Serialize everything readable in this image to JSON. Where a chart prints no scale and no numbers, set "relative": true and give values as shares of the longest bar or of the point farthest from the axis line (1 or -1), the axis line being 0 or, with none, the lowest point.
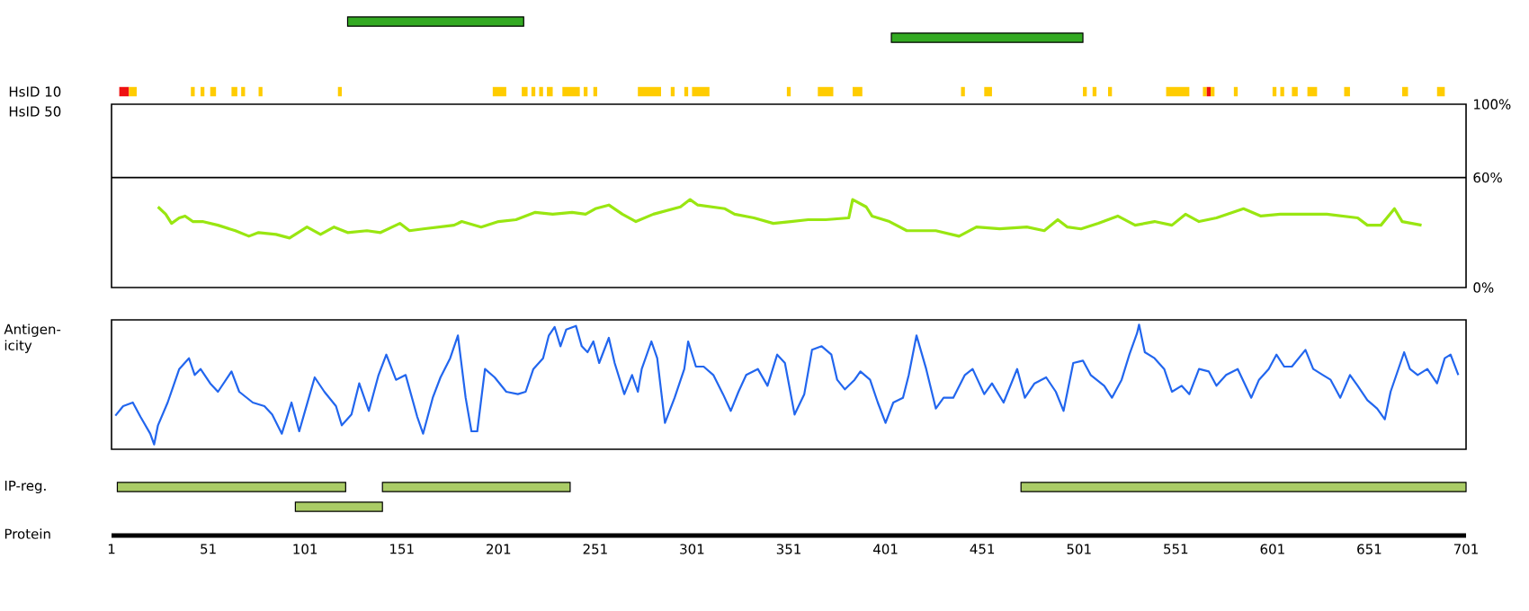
{
  "chart_data": [
    {
      "type": "bar",
      "orientation": "horizontal",
      "categories": [
        null,
        null
      ],
      "xlim": [
        1,
        701
      ],
      "tick_labels": false,
      "series": [
        {
          "color": "#33aa22",
          "values": [
            91,
            99
          ],
          "base": [
            123,
            404
          ]
        }
      ]
    },
    {
      "type": "bar",
      "orientation": "horizontal",
      "categories": [
        "HsID 10",
        "HsID 50"
      ],
      "xlim": [
        1,
        701
      ],
      "tick_labels": "y",
      "series": [
        {
          "color": "#ee1111",
          "values": [
            5,
            null
          ],
          "base": [
            5,
            null
          ]
        },
        {
          "color": "#ffcc00",
          "values": [
            4,
            null
          ],
          "base": [
            10,
            null
          ]
        },
        {
          "color": "#ffcc00",
          "values": [
            2,
            null
          ],
          "base": [
            42,
            null
          ]
        },
        {
          "color": "#ffcc00",
          "values": [
            2,
            null
          ],
          "base": [
            47,
            null
          ]
        },
        {
          "color": "#ffcc00",
          "values": [
            3,
            null
          ],
          "base": [
            52,
            null
          ]
        },
        {
          "color": "#ffcc00",
          "values": [
            3,
            null
          ],
          "base": [
            63,
            null
          ]
        },
        {
          "color": "#ffcc00",
          "values": [
            2,
            null
          ],
          "base": [
            68,
            null
          ]
        },
        {
          "color": "#ffcc00",
          "values": [
            2,
            null
          ],
          "base": [
            77,
            null
          ]
        },
        {
          "color": "#ffcc00",
          "values": [
            2,
            null
          ],
          "base": [
            118,
            null
          ]
        },
        {
          "color": "#ffcc00",
          "values": [
            7,
            null
          ],
          "base": [
            198,
            null
          ]
        },
        {
          "color": "#ffcc00",
          "values": [
            3,
            null
          ],
          "base": [
            213,
            null
          ]
        },
        {
          "color": "#ffcc00",
          "values": [
            2,
            null
          ],
          "base": [
            218,
            null
          ]
        },
        {
          "color": "#ffcc00",
          "values": [
            2,
            null
          ],
          "base": [
            222,
            null
          ]
        },
        {
          "color": "#ffcc00",
          "values": [
            3,
            null
          ],
          "base": [
            226,
            null
          ]
        },
        {
          "color": "#ffcc00",
          "values": [
            9,
            null
          ],
          "base": [
            234,
            null
          ]
        },
        {
          "color": "#ffcc00",
          "values": [
            2,
            null
          ],
          "base": [
            245,
            null
          ]
        },
        {
          "color": "#ffcc00",
          "values": [
            2,
            null
          ],
          "base": [
            250,
            null
          ]
        },
        {
          "color": "#ffcc00",
          "values": [
            12,
            null
          ],
          "base": [
            273,
            null
          ]
        },
        {
          "color": "#ffcc00",
          "values": [
            2,
            null
          ],
          "base": [
            290,
            null
          ]
        },
        {
          "color": "#ffcc00",
          "values": [
            2,
            null
          ],
          "base": [
            297,
            null
          ]
        },
        {
          "color": "#ffcc00",
          "values": [
            9,
            null
          ],
          "base": [
            301,
            null
          ]
        },
        {
          "color": "#ffcc00",
          "values": [
            2,
            null
          ],
          "base": [
            350,
            null
          ]
        },
        {
          "color": "#ffcc00",
          "values": [
            8,
            null
          ],
          "base": [
            366,
            null
          ]
        },
        {
          "color": "#ffcc00",
          "values": [
            5,
            null
          ],
          "base": [
            384,
            null
          ]
        },
        {
          "color": "#ffcc00",
          "values": [
            2,
            null
          ],
          "base": [
            440,
            null
          ]
        },
        {
          "color": "#ffcc00",
          "values": [
            4,
            null
          ],
          "base": [
            452,
            null
          ]
        },
        {
          "color": "#ffcc00",
          "values": [
            2,
            null
          ],
          "base": [
            503,
            null
          ]
        },
        {
          "color": "#ffcc00",
          "values": [
            2,
            null
          ],
          "base": [
            508,
            null
          ]
        },
        {
          "color": "#ffcc00",
          "values": [
            2,
            null
          ],
          "base": [
            516,
            null
          ]
        },
        {
          "color": "#ffcc00",
          "values": [
            12,
            null
          ],
          "base": [
            546,
            null
          ]
        },
        {
          "color": "#ffcc00",
          "values": [
            2,
            null
          ],
          "base": [
            565,
            null
          ]
        },
        {
          "color": "#ee1111",
          "values": [
            2,
            null
          ],
          "base": [
            567,
            null
          ]
        },
        {
          "color": "#ffcc00",
          "values": [
            2,
            null
          ],
          "base": [
            569,
            null
          ]
        },
        {
          "color": "#ffcc00",
          "values": [
            2,
            null
          ],
          "base": [
            581,
            null
          ]
        },
        {
          "color": "#ffcc00",
          "values": [
            2,
            null
          ],
          "base": [
            601,
            null
          ]
        },
        {
          "color": "#ffcc00",
          "values": [
            2,
            null
          ],
          "base": [
            605,
            null
          ]
        },
        {
          "color": "#ffcc00",
          "values": [
            3,
            null
          ],
          "base": [
            611,
            null
          ]
        },
        {
          "color": "#ffcc00",
          "values": [
            5,
            null
          ],
          "base": [
            619,
            null
          ]
        },
        {
          "color": "#ffcc00",
          "values": [
            3,
            null
          ],
          "base": [
            638,
            null
          ]
        },
        {
          "color": "#ffcc00",
          "values": [
            3,
            null
          ],
          "base": [
            668,
            null
          ]
        },
        {
          "color": "#ffcc00",
          "values": [
            4,
            null
          ],
          "base": [
            686,
            null
          ]
        }
      ]
    },
    {
      "type": "line",
      "color": "#99e611",
      "xlim": [
        1,
        701
      ],
      "ylim": [
        0,
        100
      ],
      "tick_labels": "y",
      "marker": "none",
      "yticks": [
        {
          "value": 0,
          "label": "0%"
        },
        {
          "value": 60,
          "label": "60%"
        },
        {
          "value": 100,
          "label": "100%"
        }
      ],
      "ref_lines": [
        {
          "axis": "y",
          "value": 60
        }
      ],
      "x": [
        25,
        29,
        32,
        36,
        39,
        43,
        48,
        56,
        65,
        72,
        77,
        86,
        93,
        102,
        109,
        116,
        123,
        133,
        140,
        150,
        155,
        162,
        178,
        182,
        192,
        201,
        210,
        220,
        229,
        239,
        246,
        251,
        258,
        265,
        272,
        281,
        295,
        300,
        304,
        318,
        323,
        333,
        343,
        352,
        361,
        370,
        382,
        384,
        391,
        394,
        403,
        412,
        427,
        439,
        448,
        460,
        474,
        483,
        490,
        495,
        502,
        511,
        521,
        530,
        540,
        549,
        556,
        563,
        572,
        586,
        595,
        605,
        615,
        629,
        645,
        650,
        657,
        664,
        668,
        678
      ],
      "values": [
        44,
        40,
        35,
        38,
        39,
        36,
        36,
        34,
        31,
        28,
        30,
        29,
        27,
        33,
        29,
        33,
        30,
        31,
        30,
        35,
        31,
        32,
        34,
        36,
        33,
        36,
        37,
        41,
        40,
        41,
        40,
        43,
        45,
        40,
        36,
        40,
        44,
        48,
        45,
        43,
        40,
        38,
        35,
        36,
        37,
        37,
        38,
        48,
        44,
        39,
        36,
        31,
        31,
        28,
        33,
        32,
        33,
        31,
        37,
        33,
        32,
        35,
        39,
        34,
        36,
        34,
        40,
        36,
        38,
        43,
        39,
        40,
        40,
        40,
        38,
        34,
        34,
        43,
        36,
        34
      ]
    },
    {
      "type": "line",
      "ylabel": "Antigen-icity",
      "relative": true,
      "color": "#2266ee",
      "xlim": [
        1,
        701
      ],
      "tick_labels": false,
      "marker": "none",
      "x": [
        3,
        7,
        12,
        16,
        21,
        23,
        25,
        30,
        33,
        36,
        41,
        44,
        47,
        52,
        56,
        63,
        67,
        74,
        80,
        84,
        89,
        94,
        98,
        101,
        106,
        111,
        117,
        120,
        125,
        129,
        134,
        139,
        143,
        148,
        153,
        159,
        162,
        167,
        171,
        176,
        180,
        184,
        187,
        190,
        194,
        199,
        205,
        211,
        215,
        219,
        224,
        227,
        230,
        233,
        236,
        241,
        244,
        247,
        250,
        253,
        258,
        261,
        266,
        270,
        273,
        275,
        280,
        283,
        287,
        292,
        297,
        299,
        303,
        307,
        312,
        317,
        321,
        325,
        329,
        335,
        340,
        345,
        349,
        354,
        359,
        363,
        368,
        373,
        376,
        380,
        385,
        388,
        393,
        397,
        401,
        405,
        410,
        413,
        417,
        422,
        427,
        431,
        436,
        442,
        446,
        452,
        456,
        462,
        469,
        473,
        478,
        484,
        489,
        493,
        498,
        503,
        507,
        514,
        518,
        523,
        527,
        531,
        532,
        535,
        540,
        545,
        549,
        554,
        558,
        563,
        568,
        572,
        577,
        583,
        590,
        594,
        599,
        603,
        607,
        611,
        618,
        622,
        627,
        631,
        636,
        641,
        645,
        650,
        655,
        659,
        662,
        669,
        672,
        676,
        681,
        686,
        690,
        693,
        697
      ],
      "values": [
        0.24,
        0.32,
        0.35,
        0.23,
        0.09,
        0,
        0.16,
        0.35,
        0.49,
        0.63,
        0.72,
        0.58,
        0.63,
        0.51,
        0.44,
        0.61,
        0.44,
        0.35,
        0.32,
        0.25,
        0.09,
        0.35,
        0.11,
        0.28,
        0.56,
        0.44,
        0.32,
        0.16,
        0.25,
        0.51,
        0.28,
        0.58,
        0.75,
        0.54,
        0.58,
        0.23,
        0.09,
        0.39,
        0.56,
        0.72,
        0.91,
        0.39,
        0.11,
        0.11,
        0.63,
        0.56,
        0.44,
        0.42,
        0.44,
        0.63,
        0.72,
        0.91,
        0.98,
        0.82,
        0.96,
        0.99,
        0.82,
        0.77,
        0.86,
        0.68,
        0.89,
        0.68,
        0.42,
        0.58,
        0.44,
        0.63,
        0.86,
        0.72,
        0.18,
        0.39,
        0.63,
        0.86,
        0.65,
        0.65,
        0.58,
        0.42,
        0.28,
        0.44,
        0.58,
        0.63,
        0.49,
        0.75,
        0.68,
        0.25,
        0.42,
        0.79,
        0.82,
        0.75,
        0.54,
        0.46,
        0.54,
        0.61,
        0.54,
        0.35,
        0.18,
        0.35,
        0.39,
        0.58,
        0.91,
        0.63,
        0.3,
        0.39,
        0.39,
        0.58,
        0.63,
        0.42,
        0.51,
        0.35,
        0.63,
        0.39,
        0.51,
        0.56,
        0.44,
        0.28,
        0.68,
        0.7,
        0.58,
        0.49,
        0.39,
        0.54,
        0.75,
        0.93,
        1,
        0.77,
        0.72,
        0.63,
        0.44,
        0.49,
        0.42,
        0.63,
        0.61,
        0.49,
        0.58,
        0.63,
        0.39,
        0.54,
        0.63,
        0.75,
        0.65,
        0.65,
        0.79,
        0.63,
        0.58,
        0.54,
        0.39,
        0.58,
        0.49,
        0.37,
        0.3,
        0.21,
        0.44,
        0.77,
        0.63,
        0.58,
        0.63,
        0.51,
        0.72,
        0.75,
        0.58
      ]
    },
    {
      "type": "bar",
      "orientation": "horizontal",
      "ylabel": "IP-reg.",
      "categories": [
        null
      ],
      "xlim": [
        1,
        701
      ],
      "tick_labels": false,
      "series": [
        {
          "color": "#aacc66",
          "values": [
            118
          ],
          "base": [
            4
          ]
        },
        {
          "color": "#aacc66",
          "values": [
            97
          ],
          "base": [
            141
          ]
        },
        {
          "color": "#aacc66",
          "values": [
            230
          ],
          "base": [
            471
          ]
        }
      ]
    },
    {
      "type": "bar",
      "orientation": "horizontal",
      "xlabel": "Protein",
      "categories": [
        null
      ],
      "xlim": [
        1,
        701
      ],
      "tick_labels": "x",
      "xticks": [
        1,
        51,
        101,
        151,
        201,
        251,
        301,
        351,
        401,
        451,
        501,
        551,
        601,
        651,
        701
      ],
      "series": [
        {
          "color": "#aacc66",
          "values": [
            45
          ],
          "base": [
            96
          ]
        }
      ]
    }
  ]
}
